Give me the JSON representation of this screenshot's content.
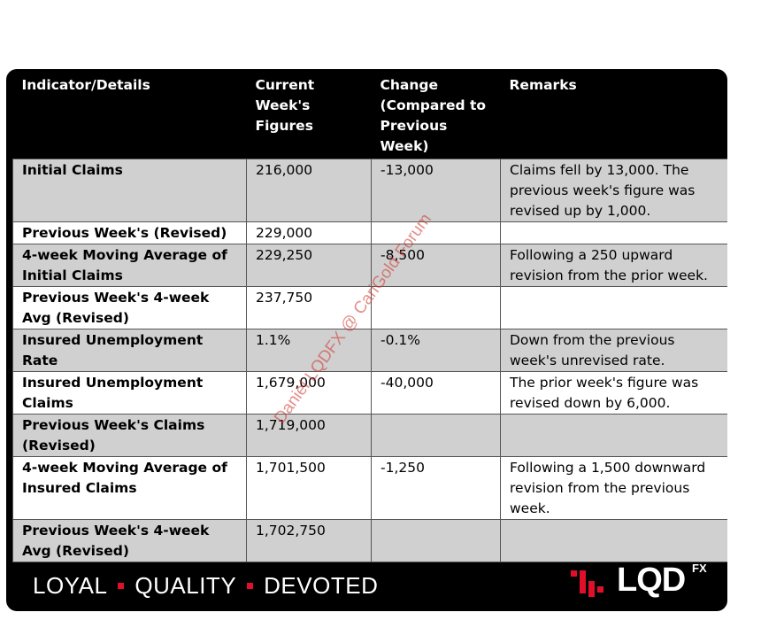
{
  "table": {
    "headers": [
      "Indicator/Details",
      "Current Week's Figures",
      "Change (Compared to Previous Week)",
      "Remarks"
    ],
    "rows": [
      {
        "indicator": "Initial Claims",
        "figure": "216,000",
        "change": "-13,000",
        "remarks": "Claims fell by 13,000. The previous week's figure was revised up by 1,000."
      },
      {
        "indicator": "Previous Week's (Revised)",
        "figure": "229,000",
        "change": "",
        "remarks": ""
      },
      {
        "indicator": "4-week Moving Average of Initial Claims",
        "figure": "229,250",
        "change": "-8,500",
        "remarks": "Following a 250 upward revision from the prior week."
      },
      {
        "indicator": "Previous Week's 4-week Avg (Revised)",
        "figure": "237,750",
        "change": "",
        "remarks": ""
      },
      {
        "indicator": "Insured Unemployment Rate",
        "figure": "1.1%",
        "change": "-0.1%",
        "remarks": "Down from the previous week's unrevised rate."
      },
      {
        "indicator": "Insured Unemployment Claims",
        "figure": "1,679,000",
        "change": "-40,000",
        "remarks": "The prior week's figure was revised down by 6,000."
      },
      {
        "indicator": "Previous Week's Claims (Revised)",
        "figure": "1,719,000",
        "change": "",
        "remarks": ""
      },
      {
        "indicator": "4-week Moving Average of Insured Claims",
        "figure": "1,701,500",
        "change": "-1,250",
        "remarks": "Following a 1,500 downward revision from the previous week."
      },
      {
        "indicator": "Previous Week's 4-week Avg (Revised)",
        "figure": "1,702,750",
        "change": "",
        "remarks": ""
      }
    ]
  },
  "watermark": "Daniel LQDFX @ CariGold Forum",
  "footer": {
    "tagline": [
      "LOYAL",
      "QUALITY",
      "DEVOTED"
    ],
    "brand": "LQD",
    "brand_suffix": "FX",
    "accent_color": "#e0102a"
  }
}
